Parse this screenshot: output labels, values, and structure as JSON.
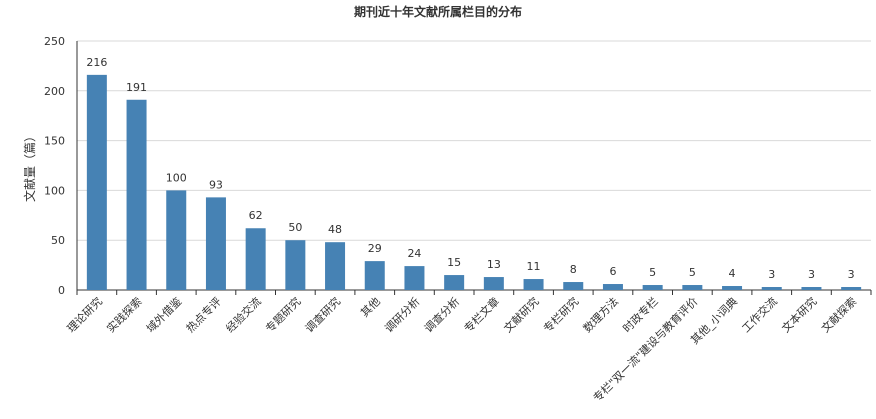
{
  "chart_data": {
    "type": "bar",
    "title": "期刊近十年文献所属栏目的分布",
    "xlabel": "",
    "ylabel": "文献量（篇）",
    "ylim": [
      0,
      250
    ],
    "yticks": [
      0,
      50,
      100,
      150,
      200,
      250
    ],
    "grid": true,
    "legend": "none",
    "bar_color": "#4682b4",
    "categories": [
      "理论研究",
      "实践探索",
      "域外借鉴",
      "热点专评",
      "经验交流",
      "专题研究",
      "调查研究",
      "其他",
      "调研分析",
      "调查分析",
      "专栏文章",
      "文献研究",
      "专栏研究",
      "数理方法",
      "时政专栏",
      "专栏\"双一流\"建设与教育评价",
      "其他_小词典",
      "工作交流",
      "文本研究",
      "文献探索"
    ],
    "values": [
      216,
      191,
      100,
      93,
      62,
      50,
      48,
      29,
      24,
      15,
      13,
      11,
      8,
      6,
      5,
      5,
      4,
      3,
      3,
      3
    ]
  }
}
